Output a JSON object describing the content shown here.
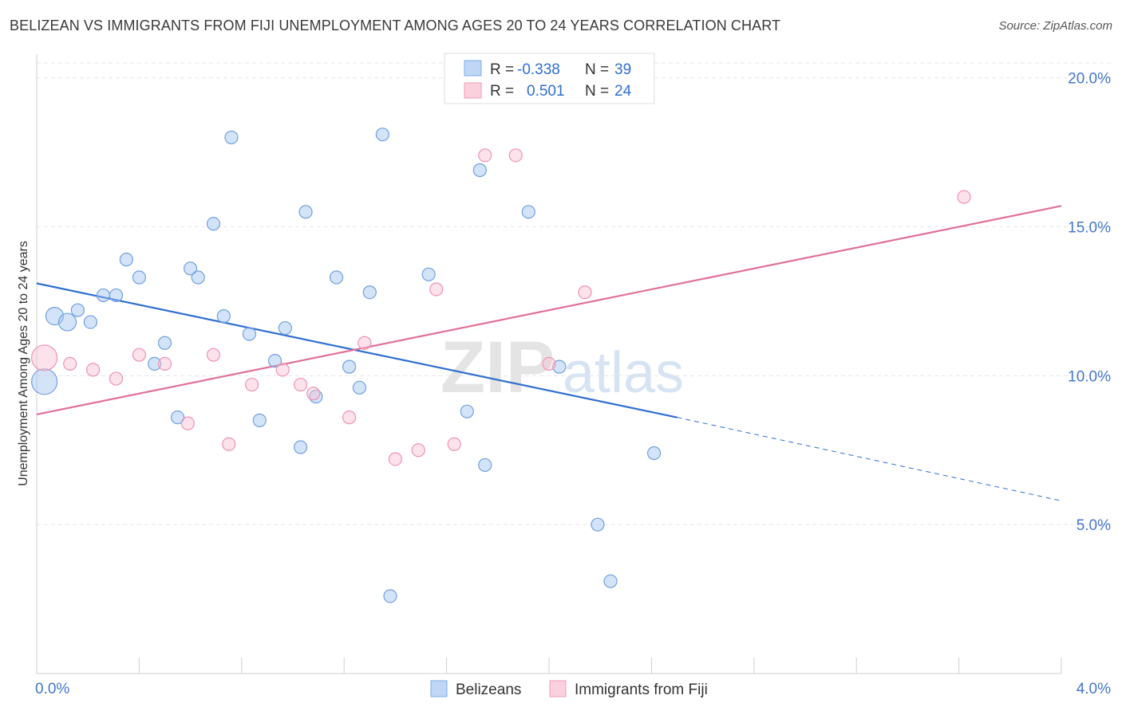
{
  "header": {
    "title": "BELIZEAN VS IMMIGRANTS FROM FIJI UNEMPLOYMENT AMONG AGES 20 TO 24 YEARS CORRELATION CHART",
    "source": "Source: ZipAtlas.com"
  },
  "watermark": {
    "zip": "ZIP",
    "atlas": "atlas"
  },
  "legend_top": {
    "rows": [
      {
        "r_label": "R =",
        "r_value": "-0.338",
        "n_label": "N =",
        "n_value": "39"
      },
      {
        "r_label": "R =",
        "r_value": "0.501",
        "n_label": "N =",
        "n_value": "24"
      }
    ]
  },
  "chart_data": {
    "type": "scatter",
    "title": "BELIZEAN VS IMMIGRANTS FROM FIJI UNEMPLOYMENT AMONG AGES 20 TO 24 YEARS CORRELATION CHART",
    "xlabel": "",
    "ylabel": "Unemployment Among Ages 20 to 24 years",
    "xlim": [
      0.0,
      4.0
    ],
    "ylim": [
      0.0,
      20.5
    ],
    "x_tick_labels": [
      "0.0%",
      "4.0%"
    ],
    "y_ticks": [
      5.0,
      10.0,
      15.0,
      20.0
    ],
    "y_tick_labels": [
      "5.0%",
      "10.0%",
      "15.0%",
      "20.0%"
    ],
    "grid": true,
    "legend_position": "bottom",
    "colors": {
      "belizeans": "#7aaee8",
      "fiji": "#f09ab8",
      "belizeans_line": "#2f6fd0",
      "fiji_line": "#e07098"
    },
    "series": [
      {
        "name": "Belizeans",
        "points": [
          {
            "x": 0.03,
            "y": 9.8,
            "big": 2
          },
          {
            "x": 0.07,
            "y": 12.0,
            "big": 1
          },
          {
            "x": 0.12,
            "y": 11.8,
            "big": 1
          },
          {
            "x": 0.16,
            "y": 12.2
          },
          {
            "x": 0.21,
            "y": 11.8
          },
          {
            "x": 0.26,
            "y": 12.7
          },
          {
            "x": 0.31,
            "y": 12.7
          },
          {
            "x": 0.35,
            "y": 13.9
          },
          {
            "x": 0.4,
            "y": 13.3
          },
          {
            "x": 0.46,
            "y": 10.4
          },
          {
            "x": 0.5,
            "y": 11.1
          },
          {
            "x": 0.55,
            "y": 8.6
          },
          {
            "x": 0.6,
            "y": 13.6
          },
          {
            "x": 0.63,
            "y": 13.3
          },
          {
            "x": 0.69,
            "y": 15.1
          },
          {
            "x": 0.73,
            "y": 12.0
          },
          {
            "x": 0.76,
            "y": 18.0
          },
          {
            "x": 0.83,
            "y": 11.4
          },
          {
            "x": 0.87,
            "y": 8.5
          },
          {
            "x": 0.93,
            "y": 10.5
          },
          {
            "x": 0.97,
            "y": 11.6
          },
          {
            "x": 1.03,
            "y": 7.6
          },
          {
            "x": 1.05,
            "y": 15.5
          },
          {
            "x": 1.09,
            "y": 9.3
          },
          {
            "x": 1.17,
            "y": 13.3
          },
          {
            "x": 1.22,
            "y": 10.3
          },
          {
            "x": 1.26,
            "y": 9.6
          },
          {
            "x": 1.3,
            "y": 12.8
          },
          {
            "x": 1.35,
            "y": 18.1
          },
          {
            "x": 1.38,
            "y": 2.6
          },
          {
            "x": 1.53,
            "y": 13.4
          },
          {
            "x": 1.68,
            "y": 8.8
          },
          {
            "x": 1.73,
            "y": 16.9
          },
          {
            "x": 1.75,
            "y": 7.0
          },
          {
            "x": 1.92,
            "y": 15.5
          },
          {
            "x": 2.04,
            "y": 10.3
          },
          {
            "x": 2.19,
            "y": 5.0
          },
          {
            "x": 2.24,
            "y": 3.1
          },
          {
            "x": 2.41,
            "y": 7.4
          }
        ]
      },
      {
        "name": "Immigrants from Fiji",
        "points": [
          {
            "x": 0.03,
            "y": 10.6,
            "big": 2
          },
          {
            "x": 0.13,
            "y": 10.4
          },
          {
            "x": 0.22,
            "y": 10.2
          },
          {
            "x": 0.31,
            "y": 9.9
          },
          {
            "x": 0.4,
            "y": 10.7
          },
          {
            "x": 0.5,
            "y": 10.4
          },
          {
            "x": 0.59,
            "y": 8.4
          },
          {
            "x": 0.69,
            "y": 10.7
          },
          {
            "x": 0.75,
            "y": 7.7
          },
          {
            "x": 0.84,
            "y": 9.7
          },
          {
            "x": 0.96,
            "y": 10.2
          },
          {
            "x": 1.03,
            "y": 9.7
          },
          {
            "x": 1.08,
            "y": 9.4
          },
          {
            "x": 1.22,
            "y": 8.6
          },
          {
            "x": 1.28,
            "y": 11.1
          },
          {
            "x": 1.4,
            "y": 7.2
          },
          {
            "x": 1.49,
            "y": 7.5
          },
          {
            "x": 1.56,
            "y": 12.9
          },
          {
            "x": 1.63,
            "y": 7.7
          },
          {
            "x": 1.75,
            "y": 17.4
          },
          {
            "x": 1.87,
            "y": 17.4
          },
          {
            "x": 2.0,
            "y": 10.4
          },
          {
            "x": 2.14,
            "y": 12.8
          },
          {
            "x": 3.62,
            "y": 16.0
          }
        ]
      }
    ],
    "trendlines": [
      {
        "series": "Belizeans",
        "x1": 0.0,
        "y1": 13.1,
        "x2": 2.5,
        "y2": 8.6,
        "dashed_to_x": 4.0,
        "dashed_to_y": 5.8
      },
      {
        "series": "Immigrants from Fiji",
        "x1": 0.0,
        "y1": 8.7,
        "x2": 4.0,
        "y2": 15.7
      }
    ]
  }
}
